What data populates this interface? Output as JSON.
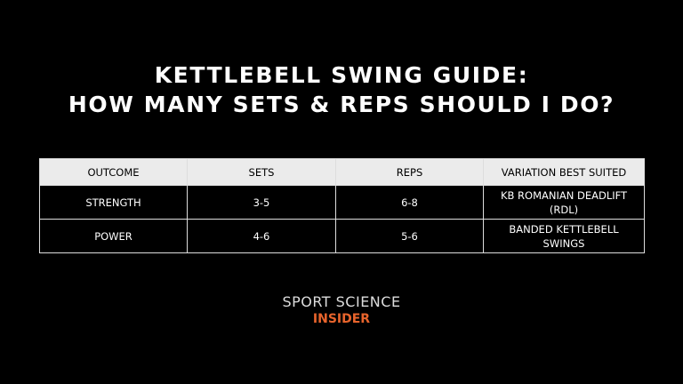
{
  "header": {
    "title_lines": [
      "KETTLEBELL SWING GUIDE:",
      "HOW MANY SETS & REPS SHOULD I DO?"
    ]
  },
  "table": {
    "columns": [
      "OUTCOME",
      "SETS",
      "REPS",
      "VARIATION BEST SUITED"
    ],
    "rows": [
      [
        "STRENGTH",
        "3-5",
        "6-8",
        "KB ROMANIAN DEADLIFT (RDL)"
      ],
      [
        "POWER",
        "4-6",
        "5-6",
        "BANDED KETTLEBELL SWINGS"
      ]
    ]
  },
  "brand": {
    "line1": "SPORT SCIENCE",
    "line2": "INSIDER"
  }
}
